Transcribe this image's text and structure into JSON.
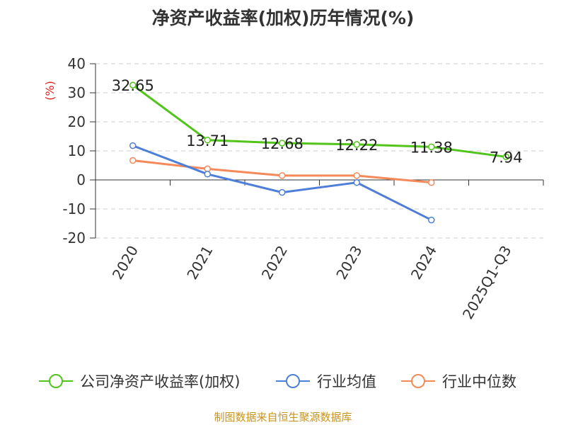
{
  "chart_data": {
    "type": "line",
    "title": "净资产收益率(加权)历年情况(%)",
    "ylabel": "(%)",
    "ylim": [
      -20,
      40
    ],
    "yticks": [
      -20,
      -10,
      0,
      10,
      20,
      30,
      40
    ],
    "categories": [
      "2020",
      "2021",
      "2022",
      "2023",
      "2024",
      "2025Q1-Q3"
    ],
    "series": [
      {
        "name": "公司净资产收益率(加权)",
        "color": "#52c41a",
        "values": [
          32.65,
          13.71,
          12.68,
          12.22,
          11.38,
          7.94
        ],
        "labels": true
      },
      {
        "name": "行业均值",
        "color": "#4e7fd8",
        "values": [
          11.8,
          2.0,
          -4.3,
          -0.9,
          -13.8,
          null
        ],
        "labels": false
      },
      {
        "name": "行业中位数",
        "color": "#f5895a",
        "values": [
          6.7,
          3.8,
          1.5,
          1.5,
          -0.9,
          null
        ],
        "labels": false
      }
    ],
    "legend_position": "bottom",
    "grid": true
  },
  "footer": {
    "source": "制图数据来自恒生聚源数据库"
  }
}
